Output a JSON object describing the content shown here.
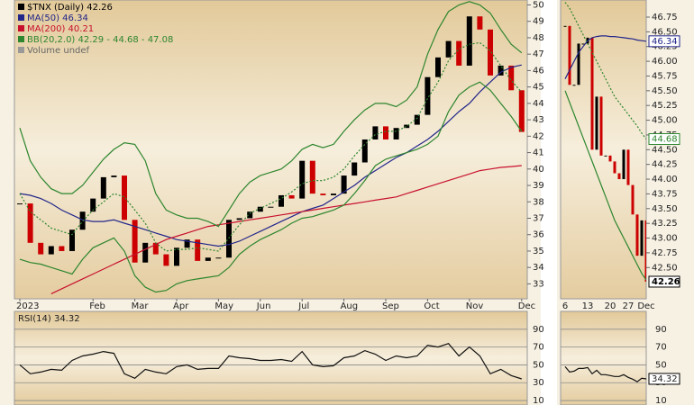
{
  "chart_data": [
    {
      "type": "candlestick",
      "annotation": "Volume undef",
      "categories": [
        "2023",
        null,
        null,
        null,
        null,
        null,
        null,
        "Feb",
        null,
        null,
        null,
        "Mar",
        null,
        null,
        null,
        "Apr",
        null,
        null,
        null,
        "May",
        null,
        null,
        null,
        "Jun",
        null,
        null,
        null,
        "Jul",
        null,
        null,
        null,
        "Aug",
        null,
        null,
        null,
        "Sep",
        null,
        null,
        null,
        "Oct",
        null,
        null,
        null,
        "Nov",
        null,
        null,
        null,
        null,
        "Dec"
      ],
      "ylim": [
        32.2,
        50.3
      ],
      "yticks": [
        33,
        34,
        35,
        36,
        37,
        38,
        39,
        40,
        41,
        42,
        43,
        44,
        45,
        46,
        47,
        48,
        49,
        50
      ],
      "series": [
        {
          "name": "$TNX (Daily) 42.26",
          "color": "#000000",
          "down_color": "#cc0000",
          "style": "candle",
          "values": [
            37.9,
            35.5,
            34.8,
            35.3,
            35.0,
            36.3,
            37.4,
            38.2,
            39.5,
            39.6,
            36.9,
            34.3,
            35.5,
            34.8,
            34.1,
            35.2,
            35.7,
            34.4,
            34.6,
            34.6,
            36.9,
            37.0,
            37.4,
            37.7,
            37.7,
            38.4,
            38.2,
            40.5,
            38.5,
            38.4,
            38.5,
            39.6,
            40.4,
            41.8,
            42.6,
            41.8,
            42.5,
            42.7,
            43.3,
            45.6,
            46.8,
            47.8,
            46.3,
            49.3,
            48.5,
            45.7,
            46.3,
            44.8,
            42.26
          ]
        },
        {
          "name": "MA(50) 46.34",
          "color": "#22268a",
          "style": "line",
          "values": [
            38.5,
            38.4,
            38.2,
            37.9,
            37.5,
            37.2,
            36.9,
            36.8,
            36.8,
            36.9,
            36.7,
            36.5,
            36.3,
            36.1,
            35.9,
            35.7,
            35.6,
            35.5,
            35.4,
            35.3,
            35.4,
            35.6,
            35.9,
            36.2,
            36.5,
            36.8,
            37.1,
            37.4,
            37.6,
            37.8,
            38.2,
            38.6,
            39.0,
            39.5,
            39.9,
            40.3,
            40.7,
            41.0,
            41.4,
            41.8,
            42.3,
            42.9,
            43.5,
            44.0,
            44.7,
            45.3,
            45.9,
            46.2,
            46.34
          ]
        },
        {
          "name": "MA(200) 40.21",
          "color": "#c8102e",
          "style": "line",
          "values": [
            null,
            null,
            null,
            32.4,
            32.7,
            33.0,
            33.3,
            33.6,
            33.9,
            34.2,
            34.5,
            34.8,
            35.1,
            35.4,
            35.7,
            35.9,
            36.1,
            36.3,
            36.5,
            36.6,
            36.7,
            36.8,
            36.9,
            37.0,
            37.1,
            37.2,
            37.3,
            37.4,
            37.5,
            37.6,
            37.7,
            37.8,
            37.9,
            38.0,
            38.1,
            38.2,
            38.3,
            38.5,
            38.7,
            38.9,
            39.1,
            39.3,
            39.5,
            39.7,
            39.9,
            40.0,
            40.1,
            40.15,
            40.21
          ]
        },
        {
          "name": "BB(20,2.0) 42.29 - 44.68 - 47.08",
          "color": "#2e862e",
          "style": "band",
          "upper": [
            42.5,
            40.5,
            39.5,
            38.8,
            38.5,
            38.5,
            39.0,
            39.8,
            40.6,
            41.2,
            41.6,
            41.5,
            40.5,
            38.5,
            37.5,
            37.2,
            37.0,
            37.0,
            36.8,
            36.5,
            37.5,
            38.5,
            39.2,
            39.6,
            39.8,
            40.0,
            40.5,
            41.2,
            41.5,
            41.3,
            41.5,
            42.3,
            43.0,
            43.6,
            44.0,
            44.0,
            43.8,
            44.2,
            45.0,
            47.0,
            48.5,
            49.6,
            50.0,
            50.2,
            50.0,
            49.5,
            48.5,
            47.6,
            47.08
          ],
          "middle": [
            38.5,
            37.4,
            36.9,
            36.4,
            36.2,
            36.0,
            36.8,
            37.5,
            38.0,
            38.5,
            38.3,
            37.5,
            36.7,
            35.5,
            35.0,
            35.1,
            35.1,
            35.2,
            35.1,
            35.0,
            35.8,
            36.6,
            37.3,
            37.6,
            37.9,
            38.2,
            38.6,
            39.1,
            39.3,
            39.3,
            39.5,
            40.0,
            40.8,
            41.5,
            42.1,
            42.3,
            42.3,
            42.6,
            43.1,
            44.3,
            45.3,
            46.6,
            47.3,
            47.6,
            47.7,
            47.2,
            46.3,
            45.4,
            44.68
          ],
          "lower": [
            34.5,
            34.3,
            34.2,
            34.0,
            33.8,
            33.6,
            34.5,
            35.2,
            35.5,
            35.8,
            35.0,
            33.5,
            32.8,
            32.5,
            32.6,
            33.0,
            33.2,
            33.3,
            33.4,
            33.5,
            34.0,
            34.8,
            35.3,
            35.7,
            36.0,
            36.3,
            36.7,
            37.0,
            37.1,
            37.3,
            37.5,
            37.8,
            38.5,
            39.3,
            40.2,
            40.6,
            40.8,
            41.0,
            41.2,
            41.5,
            42.0,
            43.5,
            44.5,
            45.0,
            45.3,
            44.8,
            44.0,
            43.2,
            42.29
          ]
        }
      ]
    },
    {
      "type": "candlestick",
      "categories": [
        "6",
        null,
        null,
        null,
        null,
        "13",
        null,
        null,
        null,
        null,
        "20",
        null,
        null,
        null,
        "27",
        null,
        null,
        null,
        "Dec"
      ],
      "ylim": [
        42.0,
        47.04
      ],
      "yticks": [
        46.75,
        {
          "value": 46.5,
          "label": "46.50"
        },
        46.25,
        {
          "value": 46,
          "label": "46.00"
        },
        45.75,
        {
          "value": 45.5,
          "label": "45.50"
        },
        45.25,
        {
          "value": 45,
          "label": "45.00"
        },
        44.75,
        {
          "value": 44.5,
          "label": "44.50"
        },
        44.25,
        {
          "value": 44,
          "label": "44.00"
        },
        43.75,
        {
          "value": 43.5,
          "label": "43.50"
        },
        43.25,
        {
          "value": 43,
          "label": "43.00"
        },
        42.75,
        {
          "value": 42.5,
          "label": "42.50"
        }
      ],
      "markers": [
        {
          "value": 46.34,
          "color": "#22268a"
        },
        {
          "value": 44.68,
          "color": "#2e862e"
        },
        {
          "value": 42.26,
          "color": "#000000"
        }
      ],
      "series": [
        {
          "color": "#000000",
          "down_color": "#cc0000",
          "style": "candle",
          "values": [
            46.6,
            45.6,
            45.6,
            46.3,
            46.3,
            46.4,
            44.5,
            45.4,
            44.4,
            44.4,
            44.3,
            44.1,
            44.0,
            44.5,
            43.9,
            43.4,
            42.7,
            43.3,
            42.26
          ]
        },
        {
          "color": "#22268a",
          "style": "line",
          "values": [
            45.7,
            45.85,
            46.0,
            46.15,
            46.25,
            46.35,
            46.4,
            46.42,
            46.43,
            46.43,
            46.42,
            46.42,
            46.41,
            46.4,
            46.39,
            46.38,
            46.36,
            46.35,
            46.34
          ]
        },
        {
          "color": "#2e862e",
          "style": "band",
          "middle": [
            47.0,
            46.9,
            46.75,
            46.6,
            46.45,
            46.3,
            46.15,
            46.0,
            45.85,
            45.7,
            45.55,
            45.4,
            45.3,
            45.2,
            45.1,
            45.0,
            44.9,
            44.78,
            44.68
          ],
          "lower": [
            45.5,
            45.3,
            45.1,
            44.9,
            44.7,
            44.5,
            44.3,
            44.1,
            43.9,
            43.7,
            43.5,
            43.3,
            43.15,
            43.0,
            42.85,
            42.7,
            42.55,
            42.4,
            42.29
          ]
        }
      ]
    },
    {
      "type": "line",
      "title": "RSI(14) 34.32",
      "color": "#111111",
      "ylim": [
        5,
        110
      ],
      "yticks": [
        10,
        30,
        50,
        70,
        90
      ],
      "values": [
        50,
        40,
        42,
        45,
        44,
        55,
        60,
        62,
        65,
        63,
        40,
        35,
        45,
        42,
        40,
        48,
        50,
        45,
        46,
        46,
        60,
        58,
        57,
        55,
        55,
        56,
        54,
        65,
        50,
        48,
        49,
        58,
        60,
        66,
        62,
        55,
        60,
        58,
        60,
        72,
        70,
        74,
        60,
        70,
        60,
        40,
        45,
        38,
        34.32
      ],
      "zoom": {
        "values": [
          48,
          42,
          43,
          46,
          46,
          47,
          40,
          44,
          39,
          39,
          38,
          37,
          37,
          39,
          36,
          34,
          31,
          35,
          34.32
        ],
        "marker": 34.32
      }
    }
  ]
}
